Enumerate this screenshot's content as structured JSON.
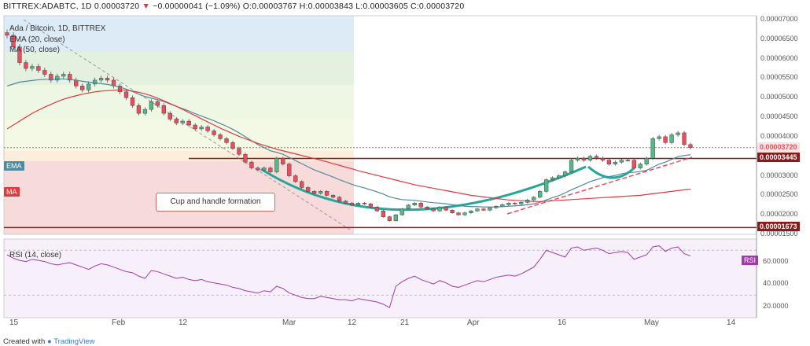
{
  "header": {
    "symbol": "BITTREX:ADABTC, 1D",
    "last": "0.00003720",
    "arrow": "▼",
    "change": "−0.00000041 (−1.09%)",
    "ohlc": "O:0.00003767 H:0.00003843 L:0.00003605 C:0.00003720"
  },
  "legend": {
    "title": "Ada / Bitcoin, 1D, BITTREX",
    "ema": "EMA (20, close)",
    "ma": "MA (50, close)"
  },
  "tags": {
    "ema": "EMA",
    "ma": "MA"
  },
  "callout": "Cup and handle formation",
  "rsi": {
    "label": "RSI (14, close)",
    "badge": "RSI",
    "ticks": [
      "60.0000",
      "40.0000",
      "20.0000"
    ]
  },
  "price_axis": [
    "0.00007000",
    "0.00006500",
    "0.00006000",
    "0.00005500",
    "0.00005000",
    "0.00004500",
    "0.00004000",
    "0.00003500",
    "0.00003000",
    "0.00002500",
    "0.00002000",
    "0.00001500"
  ],
  "badges": {
    "last": "0.00003720",
    "resistance": "0.00003445",
    "support": "0.00001673"
  },
  "x_axis": [
    "15",
    "Feb",
    "12",
    "Mar",
    "12",
    "21",
    "Apr",
    "16",
    "May",
    "14"
  ],
  "footer": {
    "created": "Created with",
    "brand": "TradingView"
  },
  "colors": {
    "up": "#53b987",
    "down": "#eb4d5c",
    "ema": "#4e8aa0",
    "ma": "#e0393e",
    "rsi": "#a13aa8",
    "cup": "#26a69a",
    "level": "#8b1a1a"
  },
  "chart_data": {
    "type": "candlestick",
    "symbol": "ADABTC",
    "ylim": [
      1.5e-05,
      7.1e-05
    ],
    "levels": {
      "resistance": 3.445e-05,
      "support": 1.673e-05,
      "last": 3.72e-05
    },
    "closes": [
      6.6e-05,
      6.3e-05,
      5.9e-05,
      5.75e-05,
      5.8e-05,
      5.7e-05,
      5.6e-05,
      5.45e-05,
      5.55e-05,
      5.6e-05,
      5.45e-05,
      5.3e-05,
      5.2e-05,
      5.35e-05,
      5.45e-05,
      5.5e-05,
      5.45e-05,
      5.3e-05,
      5.15e-05,
      5e-05,
      4.8e-05,
      4.6e-05,
      4.7e-05,
      4.9e-05,
      4.8e-05,
      4.6e-05,
      4.45e-05,
      4.35e-05,
      4.4e-05,
      4.3e-05,
      4.2e-05,
      4.25e-05,
      4.15e-05,
      4.05e-05,
      3.95e-05,
      3.85e-05,
      3.7e-05,
      3.55e-05,
      3.35e-05,
      3.2e-05,
      3.15e-05,
      3.2e-05,
      3.1e-05,
      3.45e-05,
      3.3e-05,
      3e-05,
      2.85e-05,
      2.7e-05,
      2.6e-05,
      2.55e-05,
      2.6e-05,
      2.5e-05,
      2.45e-05,
      2.35e-05,
      2.3e-05,
      2.25e-05,
      2.3e-05,
      2.28e-05,
      2.2e-05,
      2.1e-05,
      1.95e-05,
      1.85e-05,
      2e-05,
      2.15e-05,
      2.25e-05,
      2.3e-05,
      2.2e-05,
      2.15e-05,
      2.1e-05,
      2.2e-05,
      2.12e-05,
      2.05e-05,
      2e-05,
      2.05e-05,
      2.1e-05,
      2.15e-05,
      2.12e-05,
      2.18e-05,
      2.22e-05,
      2.26e-05,
      2.3e-05,
      2.28e-05,
      2.32e-05,
      2.38e-05,
      2.45e-05,
      2.6e-05,
      2.9e-05,
      2.95e-05,
      3e-05,
      3.1e-05,
      3.4e-05,
      3.45e-05,
      3.4e-05,
      3.5e-05,
      3.45e-05,
      3.4e-05,
      3.3e-05,
      3.35e-05,
      3.4e-05,
      3.4e-05,
      3.2e-05,
      3.3e-05,
      3.45e-05,
      3.95e-05,
      4e-05,
      3.85e-05,
      4.05e-05,
      4.1e-05,
      3.8e-05,
      3.72e-05
    ],
    "ema20": [
      5.3e-05,
      5.35e-05,
      5.4e-05,
      5.42e-05,
      5.44e-05,
      5.46e-05,
      5.47e-05,
      5.47e-05,
      5.48e-05,
      5.48e-05,
      5.47e-05,
      5.45e-05,
      5.42e-05,
      5.4e-05,
      5.38e-05,
      5.36e-05,
      5.34e-05,
      5.31e-05,
      5.27e-05,
      5.22e-05,
      5.16e-05,
      5.09e-05,
      5.03e-05,
      4.99e-05,
      4.95e-05,
      4.9e-05,
      4.84e-05,
      4.78e-05,
      4.72e-05,
      4.66e-05,
      4.59e-05,
      4.53e-05,
      4.47e-05,
      4.41e-05,
      4.34e-05,
      4.27e-05,
      4.19e-05,
      4.1e-05,
      4e-05,
      3.9e-05,
      3.8e-05,
      3.72e-05,
      3.64e-05,
      3.6e-05,
      3.55e-05,
      3.47e-05,
      3.39e-05,
      3.31e-05,
      3.23e-05,
      3.15e-05,
      3.09e-05,
      3.03e-05,
      2.97e-05,
      2.9e-05,
      2.84e-05,
      2.78e-05,
      2.73e-05,
      2.69e-05,
      2.64e-05,
      2.59e-05,
      2.53e-05,
      2.46e-05,
      2.42e-05,
      2.39e-05,
      2.38e-05,
      2.37e-05,
      2.35e-05,
      2.33e-05,
      2.31e-05,
      2.3e-05,
      2.28e-05,
      2.26e-05,
      2.24e-05,
      2.22e-05,
      2.21e-05,
      2.21e-05,
      2.2e-05,
      2.2e-05,
      2.2e-05,
      2.21e-05,
      2.22e-05,
      2.23e-05,
      2.24e-05,
      2.26e-05,
      2.28e-05,
      2.32e-05,
      2.38e-05,
      2.44e-05,
      2.49e-05,
      2.56e-05,
      2.64e-05,
      2.71e-05,
      2.78e-05,
      2.85e-05,
      2.9e-05,
      2.95e-05,
      2.98e-05,
      3.01e-05,
      3.05e-05,
      3.08e-05,
      3.09e-05,
      3.11e-05,
      3.14e-05,
      3.22e-05,
      3.3e-05,
      3.35e-05,
      3.42e-05,
      3.49e-05,
      3.52e-05,
      3.54e-05
    ],
    "ma50": [
      4.2e-05,
      4.3e-05,
      4.4e-05,
      4.5e-05,
      4.6e-05,
      4.68e-05,
      4.76e-05,
      4.83e-05,
      4.9e-05,
      4.96e-05,
      5.01e-05,
      5.05e-05,
      5.09e-05,
      5.12e-05,
      5.15e-05,
      5.17e-05,
      5.18e-05,
      5.19e-05,
      5.2e-05,
      5.19e-05,
      5.17e-05,
      5.14e-05,
      5.1e-05,
      5.05e-05,
      4.99e-05,
      4.92e-05,
      4.85e-05,
      4.78e-05,
      4.7e-05,
      4.62e-05,
      4.54e-05,
      4.46e-05,
      4.38e-05,
      4.3e-05,
      4.22e-05,
      4.15e-05,
      4.08e-05,
      4.01e-05,
      3.95e-05,
      3.89e-05,
      3.83e-05,
      3.78e-05,
      3.73e-05,
      3.68e-05,
      3.64e-05,
      3.6e-05,
      3.56e-05,
      3.52e-05,
      3.48e-05,
      3.44e-05,
      3.4e-05,
      3.36e-05,
      3.31e-05,
      3.27e-05,
      3.22e-05,
      3.18e-05,
      3.13e-05,
      3.09e-05,
      3.05e-05,
      3.01e-05,
      2.97e-05,
      2.93e-05,
      2.89e-05,
      2.85e-05,
      2.81e-05,
      2.77e-05,
      2.74e-05,
      2.71e-05,
      2.68e-05,
      2.65e-05,
      2.62e-05,
      2.59e-05,
      2.56e-05,
      2.53e-05,
      2.5e-05,
      2.48e-05,
      2.46e-05,
      2.44e-05,
      2.42e-05,
      2.4e-05,
      2.38e-05,
      2.37e-05,
      2.36e-05,
      2.35e-05,
      2.34e-05,
      2.34e-05,
      2.35e-05,
      2.36e-05,
      2.37e-05,
      2.38e-05,
      2.39e-05,
      2.4e-05,
      2.41e-05,
      2.42e-05,
      2.43e-05,
      2.44e-05,
      2.45e-05,
      2.46e-05,
      2.47e-05,
      2.48e-05,
      2.49e-05,
      2.5e-05,
      2.52e-05,
      2.54e-05,
      2.56e-05,
      2.58e-05,
      2.6e-05,
      2.62e-05,
      2.64e-05,
      2.66e-05
    ],
    "rsi": [
      66,
      63,
      61,
      60,
      62,
      61,
      60,
      58,
      57,
      58,
      59,
      57,
      55,
      53,
      56,
      58,
      57,
      55,
      53,
      51,
      50,
      47,
      45,
      52,
      51,
      49,
      47,
      45,
      46,
      44,
      43,
      44,
      42,
      41,
      40,
      39,
      37,
      36,
      34,
      33,
      32,
      34,
      33,
      38,
      36,
      32,
      30,
      28,
      27,
      27,
      29,
      28,
      27,
      26,
      26,
      25,
      27,
      26,
      25,
      24,
      22,
      19,
      38,
      42,
      45,
      47,
      44,
      42,
      40,
      43,
      41,
      38,
      37,
      39,
      41,
      43,
      42,
      44,
      46,
      47,
      48,
      47,
      49,
      52,
      55,
      62,
      70,
      68,
      66,
      64,
      72,
      73,
      70,
      71,
      72,
      70,
      67,
      68,
      69,
      68,
      62,
      64,
      66,
      73,
      74,
      69,
      72,
      73,
      67,
      65
    ]
  }
}
